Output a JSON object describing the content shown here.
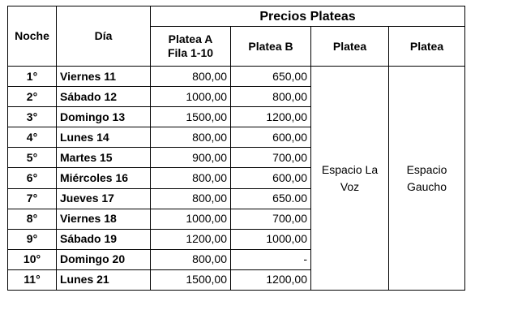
{
  "headers": {
    "noche": "Noche",
    "dia": "Día",
    "group": "Precios Plateas",
    "platea_a_line1": "Platea A",
    "platea_a_line2": "Fila 1-10",
    "platea_b": "Platea B",
    "platea_c": "Platea",
    "platea_d": "Platea"
  },
  "rows": [
    {
      "noche": "1°",
      "dia": "Viernes 11",
      "a": "800,00",
      "b": "650,00"
    },
    {
      "noche": "2°",
      "dia": "Sábado 12",
      "a": "1000,00",
      "b": "800,00"
    },
    {
      "noche": "3°",
      "dia": "Domingo 13",
      "a": "1500,00",
      "b": "1200,00"
    },
    {
      "noche": "4°",
      "dia": "Lunes 14",
      "a": "800,00",
      "b": "600,00"
    },
    {
      "noche": "5°",
      "dia": "Martes 15",
      "a": "900,00",
      "b": "700,00"
    },
    {
      "noche": "6°",
      "dia": "Miércoles 16",
      "a": "800,00",
      "b": "600,00"
    },
    {
      "noche": "7°",
      "dia": "Jueves 17",
      "a": "800,00",
      "b": "650.00"
    },
    {
      "noche": "8°",
      "dia": "Viernes 18",
      "a": "1000,00",
      "b": "700,00"
    },
    {
      "noche": "9°",
      "dia": "Sábado 19",
      "a": "1200,00",
      "b": "1000,00"
    },
    {
      "noche": "10°",
      "dia": "Domingo 20",
      "a": "800,00",
      "b": "-"
    },
    {
      "noche": "11°",
      "dia": "Lunes 21",
      "a": "1500,00",
      "b": "1200,00"
    }
  ],
  "venues": {
    "c_line1": "Espacio La",
    "c_line2": "Voz",
    "d_line1": "Espacio",
    "d_line2": "Gaucho"
  }
}
